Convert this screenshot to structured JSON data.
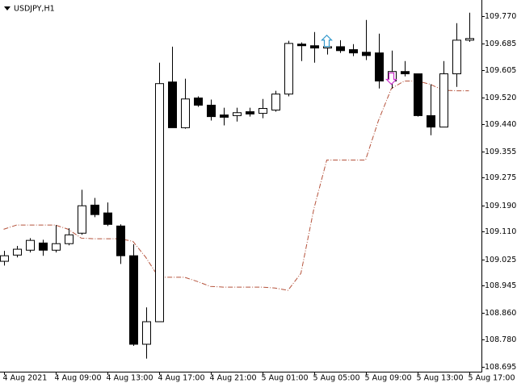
{
  "chart_data": {
    "type": "candlestick",
    "title": "USDJPY,H1",
    "categories": [
      "4 Aug 2021",
      null,
      null,
      null,
      "4 Aug 09:00",
      null,
      null,
      null,
      "4 Aug 13:00",
      null,
      null,
      null,
      "4 Aug 17:00",
      null,
      null,
      null,
      "4 Aug 21:00",
      null,
      null,
      null,
      "5 Aug 01:00",
      null,
      null,
      null,
      "5 Aug 05:00",
      null,
      null,
      null,
      "5 Aug 09:00",
      null,
      null,
      null,
      "5 Aug 13:00",
      null,
      null,
      null,
      "5 Aug 17:00"
    ],
    "open": [
      109.019,
      109.038,
      109.053,
      109.075,
      109.053,
      109.073,
      109.105,
      109.191,
      109.167,
      109.127,
      109.036,
      108.765,
      108.834,
      109.568,
      109.428,
      109.519,
      109.497,
      109.467,
      109.465,
      109.477,
      109.472,
      109.482,
      109.531,
      109.684,
      109.679,
      109.672,
      109.676,
      109.667,
      109.659,
      109.657,
      109.571,
      109.6,
      109.593,
      109.465,
      109.43,
      109.593,
      109.696
    ],
    "high": [
      109.051,
      109.066,
      109.09,
      109.085,
      109.13,
      109.12,
      109.238,
      109.213,
      109.199,
      109.132,
      109.071,
      108.878,
      109.627,
      109.676,
      109.578,
      109.524,
      109.514,
      109.489,
      109.489,
      109.489,
      109.516,
      109.541,
      109.694,
      109.689,
      109.721,
      109.701,
      109.696,
      109.684,
      109.758,
      109.716,
      109.664,
      109.632,
      109.593,
      109.561,
      109.632,
      109.748,
      109.78
    ],
    "low": [
      109.006,
      109.031,
      109.046,
      109.036,
      109.046,
      109.068,
      109.1,
      109.154,
      109.127,
      109.011,
      108.76,
      108.721,
      108.834,
      109.428,
      109.425,
      109.492,
      109.45,
      109.435,
      109.447,
      109.462,
      109.457,
      109.477,
      109.524,
      109.632,
      109.627,
      109.652,
      109.657,
      109.647,
      109.635,
      109.548,
      109.548,
      109.585,
      109.462,
      109.405,
      109.43,
      109.553,
      109.691
    ],
    "close": [
      109.036,
      109.056,
      109.083,
      109.053,
      109.073,
      109.1,
      109.189,
      109.162,
      109.132,
      109.036,
      108.765,
      108.834,
      109.563,
      109.428,
      109.516,
      109.497,
      109.462,
      109.46,
      109.474,
      109.47,
      109.487,
      109.531,
      109.686,
      109.679,
      109.672,
      109.676,
      109.664,
      109.657,
      109.649,
      109.571,
      109.6,
      109.593,
      109.465,
      109.43,
      109.593,
      109.696,
      109.701
    ],
    "up_color": "#ffffff",
    "down_color": "#000000",
    "edge_color": "#000000",
    "line": {
      "color": "#b5533c",
      "values": [
        109.117,
        109.13,
        109.13,
        109.13,
        109.13,
        109.117,
        109.09,
        109.088,
        109.088,
        109.088,
        109.08,
        109.031,
        108.97,
        108.97,
        108.97,
        108.957,
        108.942,
        108.94,
        108.94,
        108.94,
        108.94,
        108.937,
        108.93,
        108.982,
        109.179,
        109.329,
        109.329,
        109.329,
        109.329,
        109.45,
        109.548,
        109.571,
        109.571,
        109.561,
        109.543,
        109.541,
        109.541
      ]
    },
    "signals": [
      {
        "index": 25,
        "direction": "up",
        "value": 109.711,
        "color": "#3399cc"
      },
      {
        "index": 30,
        "direction": "down",
        "value": 109.561,
        "color": "#cc33cc"
      }
    ],
    "ylim": [
      108.681,
      109.819
    ],
    "yticks": [
      {
        "value": 109.77,
        "label": "109.770"
      },
      109.685,
      109.605,
      {
        "value": 109.52,
        "label": "109.520"
      },
      {
        "value": 109.44,
        "label": "109.440"
      },
      109.355,
      109.275,
      {
        "value": 109.19,
        "label": "109.190"
      },
      {
        "value": 109.11,
        "label": "109.110"
      },
      109.025,
      108.945,
      {
        "value": 108.86,
        "label": "108.860"
      },
      {
        "value": 108.78,
        "label": "108.780"
      },
      108.695
    ]
  }
}
